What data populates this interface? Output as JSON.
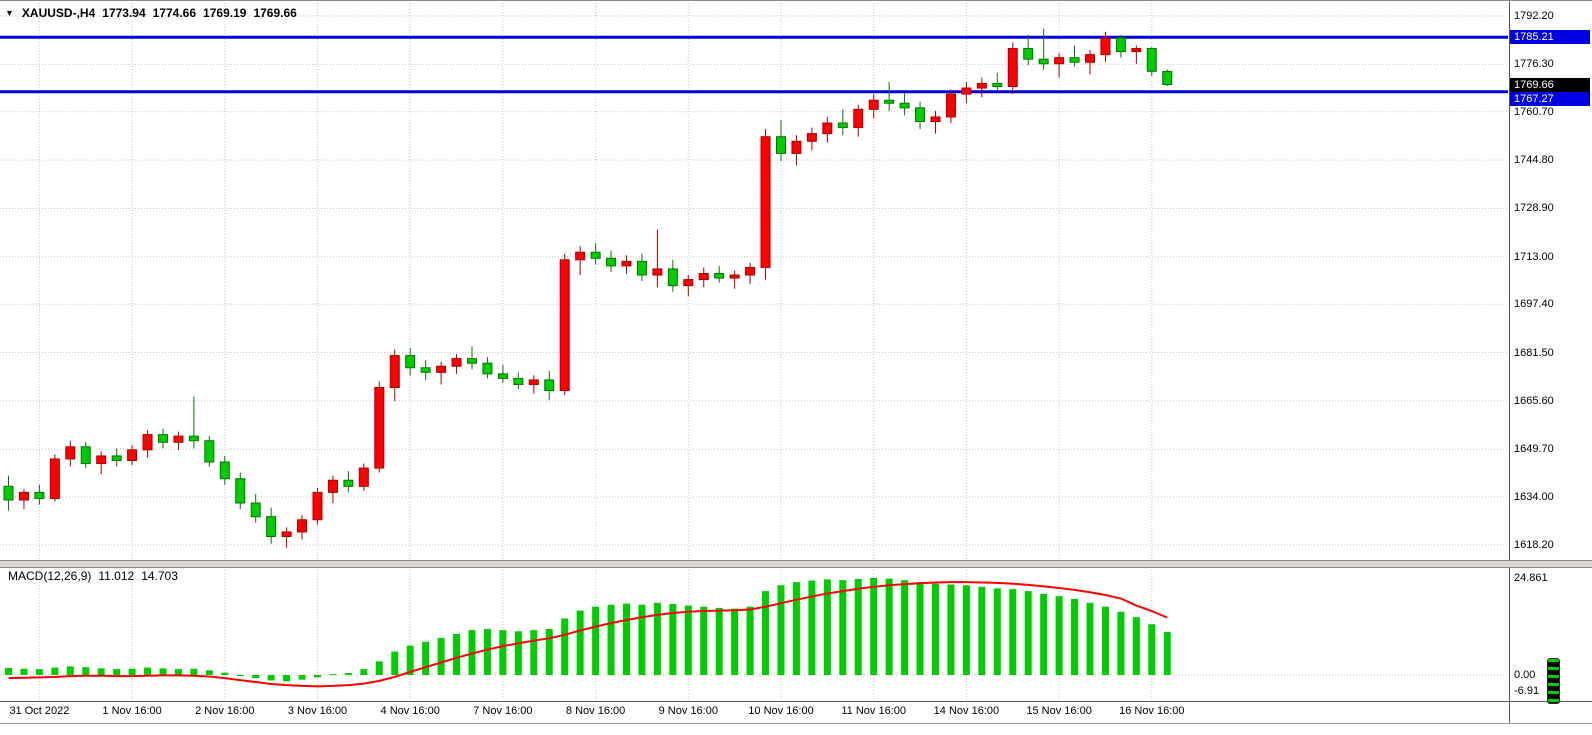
{
  "header": {
    "dropdown_icon": "▼",
    "symbol_period": "XAUUSD-,H4",
    "open": "1773.94",
    "high": "1774.66",
    "low": "1769.19",
    "close": "1769.66"
  },
  "macd_label": {
    "name": "MACD(12,26,9)",
    "macd_value": "11.012",
    "signal_value": "14.703"
  },
  "price_axis": {
    "ticks": [
      "1792.20",
      "1776.30",
      "1760.70",
      "1744.80",
      "1728.90",
      "1713.00",
      "1697.40",
      "1681.50",
      "1665.60",
      "1649.70",
      "1634.00",
      "1618.20"
    ],
    "badges": [
      {
        "text": "1785.21",
        "price": 1785.21,
        "color": "#0000e0",
        "type": "level"
      },
      {
        "text": "1769.66",
        "price": 1769.66,
        "color": "#000000",
        "type": "current"
      },
      {
        "text": "1767.27",
        "price": 1767.27,
        "color": "#0000e0",
        "type": "level"
      }
    ]
  },
  "macd_axis": {
    "ticks": [
      {
        "text": "24.861",
        "value": 24.861
      },
      {
        "text": "0.00",
        "value": 0
      },
      {
        "text": "-6.91",
        "value": -6.91
      }
    ]
  },
  "time_axis": [
    "31 Oct 2022",
    "1 Nov 16:00",
    "2 Nov 16:00",
    "3 Nov 16:00",
    "4 Nov 16:00",
    "7 Nov 16:00",
    "8 Nov 16:00",
    "9 Nov 16:00",
    "10 Nov 16:00",
    "11 Nov 16:00",
    "14 Nov 16:00",
    "15 Nov 16:00",
    "16 Nov 16:00"
  ],
  "levels": [
    1785.21,
    1767.27
  ],
  "current_price": 1769.66,
  "chart_data": {
    "type": "candlestick",
    "symbol": "XAUUSD-",
    "timeframe": "H4",
    "title": "XAUUSD-,H4",
    "candle_color_scheme": {
      "bullish": "red",
      "bearish": "green"
    },
    "price_axis_range": {
      "top": 1792.2,
      "bottom": 1618.2
    },
    "horizontal_levels": [
      1785.21,
      1767.27
    ],
    "last_candle_ohlc": {
      "open": 1773.94,
      "high": 1774.66,
      "low": 1769.19,
      "close": 1769.66
    },
    "candles_ohlc": [
      [
        1637.5,
        1641.0,
        1629.5,
        1633.0
      ],
      [
        1633.0,
        1636.5,
        1630.0,
        1635.5
      ],
      [
        1635.5,
        1638.0,
        1631.5,
        1633.5
      ],
      [
        1633.5,
        1648.0,
        1632.5,
        1646.5
      ],
      [
        1646.5,
        1652.5,
        1644.0,
        1650.5
      ],
      [
        1650.5,
        1652.0,
        1643.5,
        1645.0
      ],
      [
        1645.0,
        1649.0,
        1641.5,
        1647.5
      ],
      [
        1647.5,
        1650.0,
        1644.0,
        1646.0
      ],
      [
        1646.0,
        1651.0,
        1644.5,
        1649.5
      ],
      [
        1649.5,
        1656.0,
        1647.0,
        1654.5
      ],
      [
        1654.5,
        1656.5,
        1650.0,
        1652.0
      ],
      [
        1652.0,
        1655.5,
        1649.5,
        1654.0
      ],
      [
        1654.0,
        1667.0,
        1650.0,
        1652.5
      ],
      [
        1652.5,
        1654.0,
        1644.0,
        1645.5
      ],
      [
        1645.5,
        1647.5,
        1638.0,
        1640.0
      ],
      [
        1640.0,
        1642.0,
        1630.0,
        1632.0
      ],
      [
        1632.0,
        1635.0,
        1625.5,
        1627.5
      ],
      [
        1627.5,
        1630.5,
        1618.6,
        1621.0
      ],
      [
        1621.0,
        1624.0,
        1617.3,
        1622.5
      ],
      [
        1622.5,
        1628.0,
        1620.0,
        1626.5
      ],
      [
        1626.5,
        1637.0,
        1625.0,
        1635.5
      ],
      [
        1635.5,
        1641.0,
        1632.0,
        1639.5
      ],
      [
        1639.5,
        1642.5,
        1635.5,
        1637.5
      ],
      [
        1637.5,
        1645.0,
        1636.0,
        1643.5
      ],
      [
        1643.5,
        1672.0,
        1642.0,
        1670.0
      ],
      [
        1670.0,
        1682.5,
        1665.5,
        1680.5
      ],
      [
        1680.5,
        1683.0,
        1674.0,
        1676.5
      ],
      [
        1676.5,
        1679.0,
        1672.5,
        1675.0
      ],
      [
        1675.0,
        1678.5,
        1671.0,
        1677.0
      ],
      [
        1677.0,
        1681.0,
        1674.5,
        1679.5
      ],
      [
        1679.5,
        1683.5,
        1676.0,
        1678.0
      ],
      [
        1678.0,
        1680.0,
        1673.0,
        1674.5
      ],
      [
        1674.5,
        1677.5,
        1671.5,
        1673.0
      ],
      [
        1673.0,
        1675.0,
        1669.5,
        1671.0
      ],
      [
        1671.0,
        1674.0,
        1668.0,
        1672.5
      ],
      [
        1672.5,
        1675.5,
        1665.8,
        1669.0
      ],
      [
        1669.0,
        1714.0,
        1667.5,
        1712.0
      ],
      [
        1712.0,
        1716.5,
        1707.0,
        1714.5
      ],
      [
        1714.5,
        1717.5,
        1710.5,
        1712.5
      ],
      [
        1712.5,
        1715.0,
        1708.0,
        1710.0
      ],
      [
        1710.0,
        1713.5,
        1707.5,
        1711.5
      ],
      [
        1711.5,
        1714.0,
        1705.0,
        1707.0
      ],
      [
        1707.0,
        1722.0,
        1703.0,
        1709.0
      ],
      [
        1709.0,
        1712.0,
        1701.5,
        1703.5
      ],
      [
        1703.5,
        1707.0,
        1700.0,
        1705.5
      ],
      [
        1705.5,
        1709.5,
        1703.0,
        1707.5
      ],
      [
        1707.5,
        1710.0,
        1704.5,
        1706.0
      ],
      [
        1706.0,
        1708.5,
        1702.5,
        1707.0
      ],
      [
        1707.0,
        1711.0,
        1704.0,
        1709.5
      ],
      [
        1709.5,
        1755.0,
        1705.5,
        1752.5
      ],
      [
        1752.5,
        1758.0,
        1744.5,
        1747.0
      ],
      [
        1747.0,
        1753.0,
        1743.0,
        1751.0
      ],
      [
        1751.0,
        1755.5,
        1748.0,
        1753.5
      ],
      [
        1753.5,
        1759.0,
        1750.5,
        1757.0
      ],
      [
        1757.0,
        1761.5,
        1753.0,
        1755.5
      ],
      [
        1755.5,
        1763.0,
        1752.5,
        1761.5
      ],
      [
        1761.5,
        1766.5,
        1758.5,
        1764.5
      ],
      [
        1764.5,
        1770.5,
        1761.0,
        1763.5
      ],
      [
        1763.5,
        1767.0,
        1759.5,
        1762.0
      ],
      [
        1762.0,
        1764.0,
        1755.0,
        1757.5
      ],
      [
        1757.5,
        1761.0,
        1753.5,
        1759.0
      ],
      [
        1759.0,
        1768.0,
        1757.0,
        1766.5
      ],
      [
        1766.5,
        1770.5,
        1763.5,
        1768.5
      ],
      [
        1768.5,
        1772.0,
        1765.5,
        1770.0
      ],
      [
        1770.0,
        1773.5,
        1767.5,
        1769.0
      ],
      [
        1769.0,
        1783.5,
        1766.5,
        1781.5
      ],
      [
        1781.5,
        1786.0,
        1776.0,
        1778.0
      ],
      [
        1778.0,
        1788.0,
        1774.5,
        1776.5
      ],
      [
        1776.5,
        1780.0,
        1772.0,
        1778.5
      ],
      [
        1778.5,
        1782.5,
        1775.5,
        1777.0
      ],
      [
        1777.0,
        1781.0,
        1773.0,
        1779.5
      ],
      [
        1779.5,
        1787.0,
        1777.0,
        1785.0
      ],
      [
        1785.0,
        1786.0,
        1778.5,
        1780.5
      ],
      [
        1780.5,
        1782.5,
        1776.5,
        1781.5
      ],
      [
        1781.5,
        1782.0,
        1772.5,
        1774.0
      ],
      [
        1773.94,
        1774.66,
        1769.19,
        1769.66
      ]
    ],
    "indicator": {
      "name": "MACD(12,26,9)",
      "macd_value": 11.012,
      "signal_value": 14.703,
      "axis_max": 24.861,
      "axis_min": -6.91,
      "histogram": [
        1.8,
        1.6,
        1.5,
        1.9,
        2.2,
        2.0,
        1.7,
        1.5,
        1.6,
        1.9,
        1.7,
        1.5,
        1.6,
        1.2,
        0.6,
        -0.2,
        -0.8,
        -1.4,
        -1.6,
        -1.2,
        -0.6,
        0.2,
        0.5,
        1.5,
        3.5,
        6.0,
        7.5,
        8.5,
        9.5,
        10.5,
        11.5,
        11.8,
        11.5,
        11.2,
        11.5,
        11.8,
        14.5,
        16.5,
        17.5,
        18.0,
        18.3,
        18.0,
        18.5,
        18.2,
        17.8,
        17.5,
        17.2,
        17.0,
        17.5,
        21.5,
        23.0,
        23.8,
        24.2,
        24.5,
        24.3,
        24.6,
        24.861,
        24.7,
        24.3,
        23.8,
        23.4,
        23.2,
        23.0,
        22.6,
        22.2,
        22.0,
        21.5,
        20.8,
        20.2,
        19.5,
        18.5,
        17.5,
        16.2,
        14.8,
        13.0,
        11.012
      ],
      "signal": [
        -0.8,
        -0.7,
        -0.6,
        -0.5,
        -0.3,
        -0.2,
        -0.2,
        -0.3,
        -0.3,
        -0.2,
        -0.1,
        -0.1,
        -0.2,
        -0.4,
        -0.8,
        -1.3,
        -1.8,
        -2.3,
        -2.6,
        -2.8,
        -2.9,
        -2.8,
        -2.6,
        -2.2,
        -1.5,
        -0.5,
        0.8,
        2.0,
        3.2,
        4.4,
        5.5,
        6.5,
        7.4,
        8.1,
        8.8,
        9.4,
        10.3,
        11.4,
        12.4,
        13.3,
        14.1,
        14.8,
        15.4,
        15.9,
        16.2,
        16.4,
        16.5,
        16.6,
        16.8,
        17.5,
        18.4,
        19.3,
        20.1,
        20.9,
        21.5,
        22.1,
        22.6,
        23.0,
        23.3,
        23.5,
        23.7,
        23.8,
        23.8,
        23.7,
        23.6,
        23.4,
        23.1,
        22.7,
        22.3,
        21.8,
        21.2,
        20.5,
        19.6,
        17.8,
        16.4,
        14.703
      ]
    },
    "colors": {
      "bull": "#ff0000",
      "bull_border": "#a80000",
      "bear": "#00cc00",
      "bear_border": "#007700",
      "macd_hist": "#00cc00",
      "macd_signal": "#ff0000",
      "level_line": "#0000e0",
      "grid": "#c2c2c2",
      "background": "#ffffff",
      "axis_text": "#000000"
    }
  }
}
